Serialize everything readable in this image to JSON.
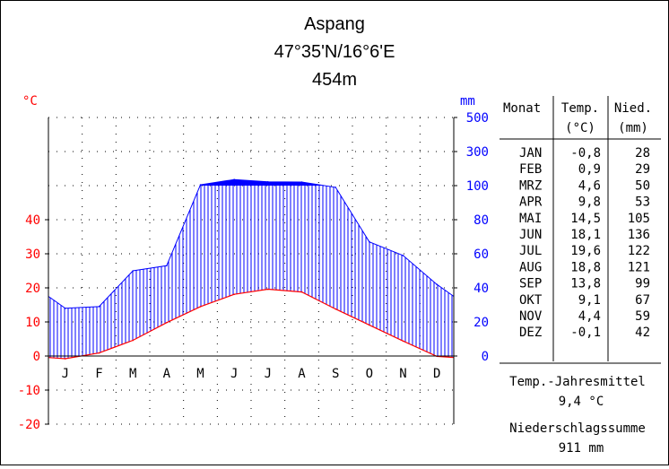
{
  "header": {
    "station": "Aspang",
    "coordinates": "47°35'N/16°6'E",
    "elevation": "454m"
  },
  "chart_data": {
    "type": "climate_diagram",
    "temp_unit": "°C",
    "precip_unit": "mm",
    "months": [
      "J",
      "F",
      "M",
      "A",
      "M",
      "J",
      "J",
      "A",
      "S",
      "O",
      "N",
      "D"
    ],
    "temp_ticks": [
      -20,
      -10,
      0,
      10,
      20,
      30,
      40
    ],
    "precip_ticks": [
      0,
      20,
      40,
      60,
      80,
      100,
      300,
      500
    ],
    "series": [
      {
        "name": "Temp.",
        "unit": "°C",
        "values": [
          -0.8,
          0.9,
          4.6,
          9.8,
          14.5,
          18.1,
          19.6,
          18.8,
          13.8,
          9.1,
          4.4,
          -0.1
        ]
      },
      {
        "name": "Nied.",
        "unit": "mm",
        "values": [
          28,
          29,
          50,
          53,
          105,
          136,
          122,
          121,
          99,
          67,
          59,
          42
        ]
      }
    ],
    "colors": {
      "temperature": "#ff0000",
      "precipitation": "#0000ff",
      "humid_hatch": "#0000ff"
    }
  },
  "table": {
    "headers": {
      "month": "Monat",
      "temp": "Temp.",
      "temp_unit": "(°C)",
      "precip": "Nied.",
      "precip_unit": "(mm)"
    },
    "rows": [
      {
        "month": "JAN",
        "temp": "-0,8",
        "precip": "28"
      },
      {
        "month": "FEB",
        "temp": "0,9",
        "precip": "29"
      },
      {
        "month": "MRZ",
        "temp": "4,6",
        "precip": "50"
      },
      {
        "month": "APR",
        "temp": "9,8",
        "precip": "53"
      },
      {
        "month": "MAI",
        "temp": "14,5",
        "precip": "105"
      },
      {
        "month": "JUN",
        "temp": "18,1",
        "precip": "136"
      },
      {
        "month": "JUL",
        "temp": "19,6",
        "precip": "122"
      },
      {
        "month": "AUG",
        "temp": "18,8",
        "precip": "121"
      },
      {
        "month": "SEP",
        "temp": "13,8",
        "precip": "99"
      },
      {
        "month": "OKT",
        "temp": "9,1",
        "precip": "67"
      },
      {
        "month": "NOV",
        "temp": "4,4",
        "precip": "59"
      },
      {
        "month": "DEZ",
        "temp": "-0,1",
        "precip": "42"
      }
    ]
  },
  "summary": {
    "annual_temp_label": "Temp.-Jahresmittel",
    "annual_temp_value": "9,4 °C",
    "annual_precip_label": "Niederschlagssumme",
    "annual_precip_value": "911 mm"
  }
}
